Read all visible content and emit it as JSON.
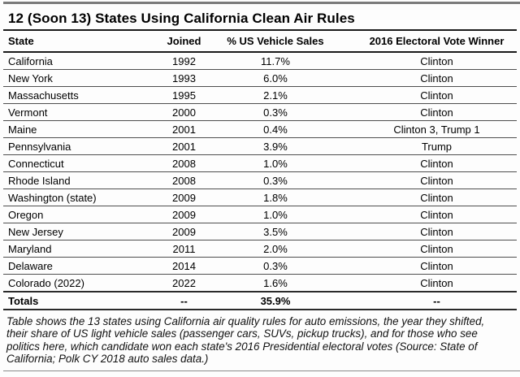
{
  "title": "12 (Soon 13) States Using California Clean Air Rules",
  "chart_data": {
    "type": "table",
    "title": "12 (Soon 13) States Using California Clean Air Rules",
    "columns": [
      "State",
      "Joined",
      "% US Vehicle Sales",
      "2016 Electoral Vote Winner"
    ],
    "rows": [
      [
        "California",
        "1992",
        "11.7%",
        "Clinton"
      ],
      [
        "New York",
        "1993",
        "6.0%",
        "Clinton"
      ],
      [
        "Massachusetts",
        "1995",
        "2.1%",
        "Clinton"
      ],
      [
        "Vermont",
        "2000",
        "0.3%",
        "Clinton"
      ],
      [
        "Maine",
        "2001",
        "0.4%",
        "Clinton 3, Trump 1"
      ],
      [
        "Pennsylvania",
        "2001",
        "3.9%",
        "Trump"
      ],
      [
        "Connecticut",
        "2008",
        "1.0%",
        "Clinton"
      ],
      [
        "Rhode Island",
        "2008",
        "0.3%",
        "Clinton"
      ],
      [
        "Washington (state)",
        "2009",
        "1.8%",
        "Clinton"
      ],
      [
        "Oregon",
        "2009",
        "1.0%",
        "Clinton"
      ],
      [
        "New Jersey",
        "2009",
        "3.5%",
        "Clinton"
      ],
      [
        "Maryland",
        "2011",
        "2.0%",
        "Clinton"
      ],
      [
        "Delaware",
        "2014",
        "0.3%",
        "Clinton"
      ],
      [
        "Colorado (2022)",
        "2022",
        "1.6%",
        "Clinton"
      ]
    ],
    "totals_row": [
      "Totals",
      "--",
      "35.9%",
      "--"
    ],
    "footnote": "Table shows the 13 states using California air quality rules for auto emissions, the year they shifted, their share of US light vehicle sales (passenger cars, SUVs, pickup trucks), and for those who see politics here, which candidate won each state's 2016 Presidential electoral votes (Source: State of California; Polk CY 2018 auto sales data.)",
    "layout": {
      "grid": "horizontal-rules-only",
      "legend": "none"
    }
  },
  "colors": {
    "text": "#000000",
    "top_rule": "#7b7b7b",
    "header_rule": "#1a1a1a",
    "row_rule": "#4e4e4e",
    "bottom_rule": "#8a8a8a",
    "background": "#fdfdfd"
  }
}
